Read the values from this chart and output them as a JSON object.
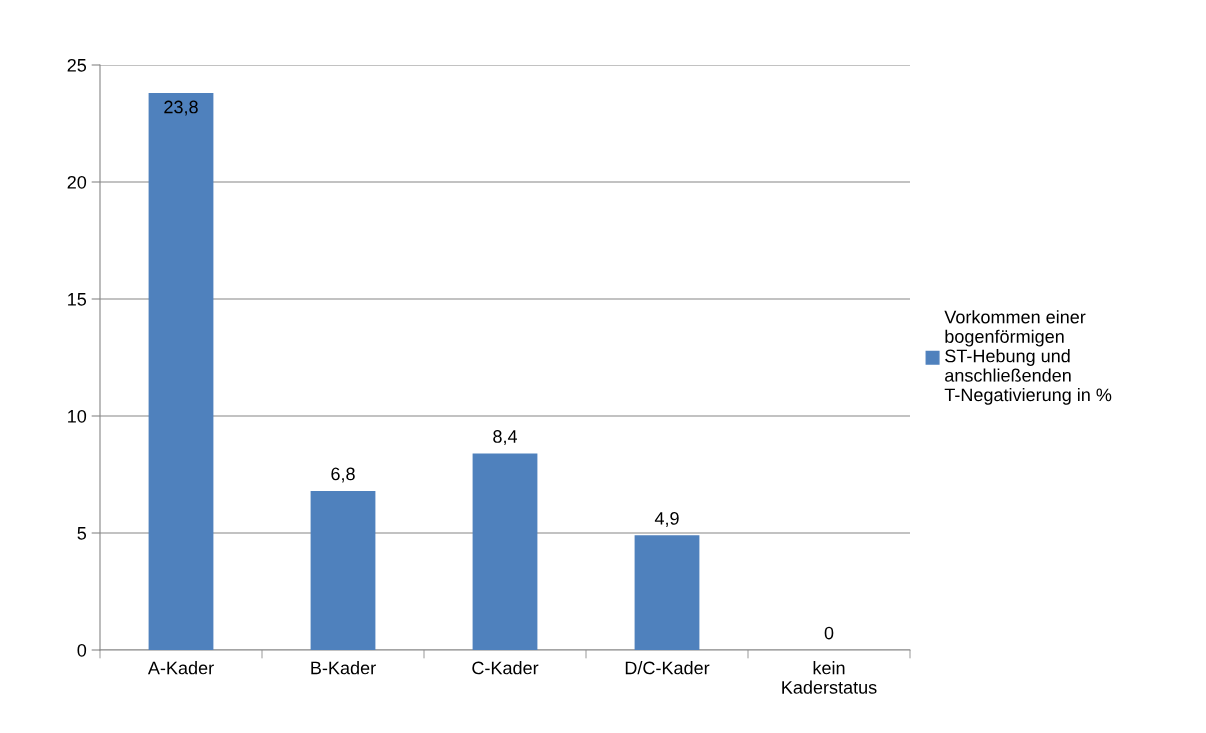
{
  "chart_data": {
    "type": "bar",
    "categories": [
      "A-Kader",
      "B-Kader",
      "C-Kader",
      "D/C-Kader",
      "kein Kaderstatus"
    ],
    "series": [
      {
        "name": "Vorkommen einer bogenförmigen ST-Hebung und anschließenden T-Negativierung in %",
        "color": "#4f81bd",
        "values": [
          23.8,
          6.8,
          8.4,
          4.9,
          0
        ],
        "value_labels": [
          "23,8",
          "6,8",
          "8,4",
          "4,9",
          "0"
        ]
      }
    ],
    "ylim": [
      0,
      25
    ],
    "yticks": [
      0,
      5,
      10,
      15,
      20,
      25
    ],
    "grid": "y",
    "legend": "right"
  }
}
